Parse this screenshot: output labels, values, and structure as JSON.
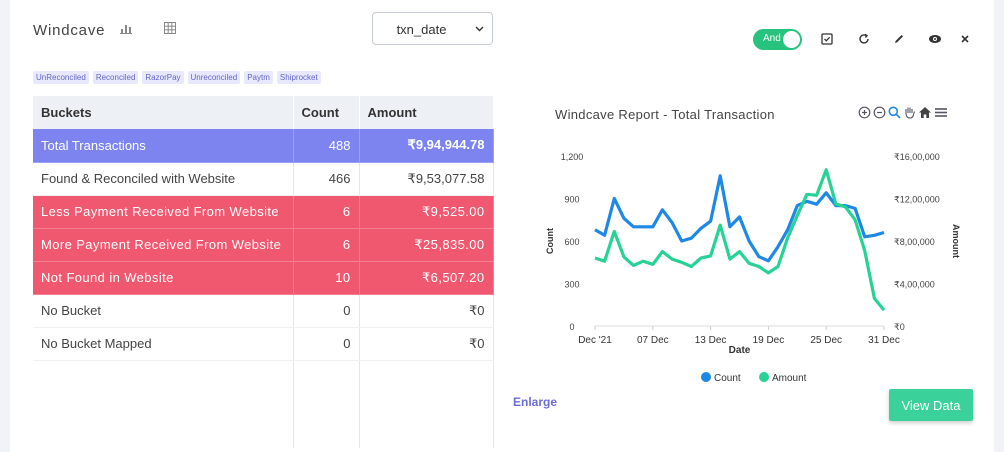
{
  "header": {
    "title": "Windcave",
    "date_field": "txn_date",
    "toggle_label": "And"
  },
  "tags": [
    "UnReconciled",
    "Reconciled",
    "RazorPay",
    "Unreconciled",
    "Paytm",
    "Shiprocket"
  ],
  "table": {
    "columns": [
      "Buckets",
      "Count",
      "Amount"
    ],
    "rows": [
      {
        "bucket": "Total Transactions",
        "count": "488",
        "amount": "₹9,94,944.78",
        "style": "blue"
      },
      {
        "bucket": "Found & Reconciled with Website",
        "count": "466",
        "amount": "₹9,53,077.58",
        "style": "plain"
      },
      {
        "bucket": "Less Payment Received From Website",
        "count": "6",
        "amount": "₹9,525.00",
        "style": "red"
      },
      {
        "bucket": "More Payment Received From Website",
        "count": "6",
        "amount": "₹25,835.00",
        "style": "red"
      },
      {
        "bucket": "Not Found in Website",
        "count": "10",
        "amount": "₹6,507.20",
        "style": "red"
      },
      {
        "bucket": "No Bucket",
        "count": "0",
        "amount": "₹0",
        "style": "plain"
      },
      {
        "bucket": "No Bucket Mapped",
        "count": "0",
        "amount": "₹0",
        "style": "plain"
      }
    ]
  },
  "chart_data": {
    "type": "line",
    "title": "Windcave Report - Total Transaction",
    "xlabel": "Date",
    "ylabel_left": "Count",
    "ylabel_right": "Amount",
    "x_ticks": [
      "Dec '21",
      "07 Dec",
      "13 Dec",
      "19 Dec",
      "25 Dec",
      "31 Dec"
    ],
    "y_left_ticks": [
      "0",
      "300",
      "600",
      "900",
      "1,200"
    ],
    "y_right_ticks": [
      "₹0",
      "₹4,00,000",
      "₹8,00,000",
      "₹12,00,000",
      "₹16,00,000"
    ],
    "y_left_range": [
      0,
      1200
    ],
    "y_right_range": [
      0,
      1600000
    ],
    "x_day_range": [
      1,
      31
    ],
    "legend_position": "bottom",
    "series": [
      {
        "name": "Count",
        "axis": "left",
        "color": "#1e88e5",
        "values": [
          680,
          640,
          900,
          760,
          700,
          700,
          700,
          820,
          730,
          600,
          620,
          690,
          740,
          1060,
          700,
          770,
          600,
          490,
          460,
          560,
          680,
          850,
          880,
          860,
          940,
          850,
          850,
          830,
          630,
          640,
          660
        ]
      },
      {
        "name": "Amount",
        "axis": "right",
        "color": "#26d394",
        "values": [
          640000,
          610000,
          890000,
          650000,
          570000,
          610000,
          580000,
          700000,
          630000,
          600000,
          560000,
          640000,
          660000,
          950000,
          630000,
          700000,
          590000,
          560000,
          500000,
          560000,
          830000,
          1040000,
          1240000,
          1230000,
          1470000,
          1150000,
          1120000,
          1000000,
          710000,
          260000,
          150000
        ]
      }
    ]
  },
  "actions": {
    "enlarge_label": "Enlarge",
    "view_data_label": "View Data"
  },
  "colors": {
    "accent": "#27c37e",
    "total_row": "#7d84ef",
    "alert_row": "#f0586f",
    "tag_text": "#6466c8"
  },
  "icons": [
    "bar-chart-icon",
    "table-grid-icon",
    "checkbox-icon",
    "refresh-icon",
    "edit-icon",
    "eye-icon",
    "close-icon",
    "zoom-in-icon",
    "zoom-out-icon",
    "zoom-select-icon",
    "pan-hand-icon",
    "home-icon",
    "menu-icon",
    "chevron-down-icon"
  ]
}
